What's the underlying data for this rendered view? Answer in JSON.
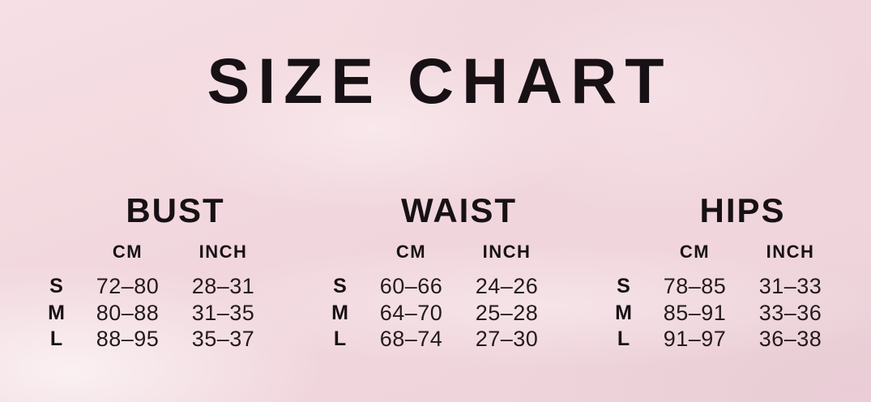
{
  "title": "SIZE CHART",
  "colors": {
    "background_base": "#f1d7dd",
    "background_highlight": "#fbf2f3",
    "background_shadow": "#e8ccd4",
    "text": "#171115"
  },
  "sections": [
    {
      "name": "BUST",
      "col_headers": {
        "cm": "CM",
        "inch": "INCH"
      },
      "rows": [
        {
          "size": "S",
          "cm": "72–80",
          "inch": "28–31"
        },
        {
          "size": "M",
          "cm": "80–88",
          "inch": "31–35"
        },
        {
          "size": "L",
          "cm": "88–95",
          "inch": "35–37"
        }
      ]
    },
    {
      "name": "WAIST",
      "col_headers": {
        "cm": "CM",
        "inch": "INCH"
      },
      "rows": [
        {
          "size": "S",
          "cm": "60–66",
          "inch": "24–26"
        },
        {
          "size": "M",
          "cm": "64–70",
          "inch": "25–28"
        },
        {
          "size": "L",
          "cm": "68–74",
          "inch": "27–30"
        }
      ]
    },
    {
      "name": "HIPS",
      "col_headers": {
        "cm": "CM",
        "inch": "INCH"
      },
      "rows": [
        {
          "size": "S",
          "cm": "78–85",
          "inch": "31–33"
        },
        {
          "size": "M",
          "cm": "85–91",
          "inch": "33–36"
        },
        {
          "size": "L",
          "cm": "91–97",
          "inch": "36–38"
        }
      ]
    }
  ],
  "chart_data": {
    "type": "table",
    "title": "SIZE CHART",
    "row_labels": [
      "S",
      "M",
      "L"
    ],
    "tables": [
      {
        "measure": "BUST",
        "columns": [
          "CM",
          "INCH"
        ],
        "rows": [
          [
            "S",
            "72–80",
            "28–31"
          ],
          [
            "M",
            "80–88",
            "31–35"
          ],
          [
            "L",
            "88–95",
            "35–37"
          ]
        ]
      },
      {
        "measure": "WAIST",
        "columns": [
          "CM",
          "INCH"
        ],
        "rows": [
          [
            "S",
            "60–66",
            "24–26"
          ],
          [
            "M",
            "64–70",
            "25–28"
          ],
          [
            "L",
            "68–74",
            "27–30"
          ]
        ]
      },
      {
        "measure": "HIPS",
        "columns": [
          "CM",
          "INCH"
        ],
        "rows": [
          [
            "S",
            "78–85",
            "31–33"
          ],
          [
            "M",
            "85–91",
            "33–36"
          ],
          [
            "L",
            "91–97",
            "36–38"
          ]
        ]
      }
    ]
  }
}
